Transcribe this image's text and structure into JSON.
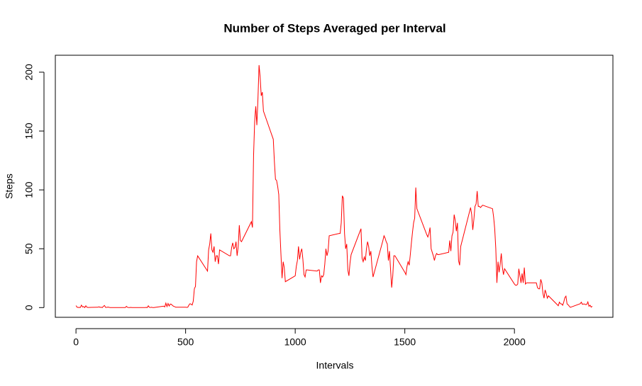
{
  "chart_data": {
    "type": "line",
    "title": "Number of Steps Averaged per Interval",
    "x_label": "Intervals",
    "y_label": "Steps",
    "color": "#ff0000",
    "x": [
      0,
      5,
      10,
      15,
      20,
      25,
      30,
      35,
      40,
      45,
      50,
      55,
      100,
      105,
      110,
      115,
      120,
      125,
      130,
      135,
      140,
      145,
      150,
      155,
      200,
      205,
      210,
      215,
      220,
      225,
      230,
      235,
      240,
      245,
      250,
      255,
      300,
      305,
      310,
      315,
      320,
      325,
      330,
      335,
      340,
      345,
      350,
      355,
      400,
      405,
      410,
      415,
      420,
      425,
      430,
      435,
      440,
      445,
      450,
      455,
      500,
      505,
      510,
      515,
      520,
      525,
      530,
      535,
      540,
      545,
      550,
      555,
      600,
      605,
      610,
      615,
      620,
      625,
      630,
      635,
      640,
      645,
      650,
      655,
      700,
      705,
      710,
      715,
      720,
      725,
      730,
      735,
      740,
      745,
      750,
      755,
      800,
      805,
      810,
      815,
      820,
      825,
      830,
      835,
      840,
      845,
      850,
      855,
      900,
      905,
      910,
      915,
      920,
      925,
      930,
      935,
      940,
      945,
      950,
      955,
      1000,
      1005,
      1010,
      1015,
      1020,
      1025,
      1030,
      1035,
      1040,
      1045,
      1050,
      1055,
      1100,
      1105,
      1110,
      1115,
      1120,
      1125,
      1130,
      1135,
      1140,
      1145,
      1150,
      1155,
      1200,
      1205,
      1210,
      1215,
      1220,
      1225,
      1230,
      1235,
      1240,
      1245,
      1250,
      1255,
      1300,
      1305,
      1310,
      1315,
      1320,
      1325,
      1330,
      1335,
      1340,
      1345,
      1350,
      1355,
      1400,
      1405,
      1410,
      1415,
      1420,
      1425,
      1430,
      1435,
      1440,
      1445,
      1450,
      1455,
      1500,
      1505,
      1510,
      1515,
      1520,
      1525,
      1530,
      1535,
      1540,
      1545,
      1550,
      1555,
      1600,
      1605,
      1610,
      1615,
      1620,
      1625,
      1630,
      1635,
      1640,
      1645,
      1650,
      1655,
      1700,
      1705,
      1710,
      1715,
      1720,
      1725,
      1730,
      1735,
      1740,
      1745,
      1750,
      1755,
      1800,
      1805,
      1810,
      1815,
      1820,
      1825,
      1830,
      1835,
      1840,
      1845,
      1850,
      1855,
      1900,
      1905,
      1910,
      1915,
      1920,
      1925,
      1930,
      1935,
      1940,
      1945,
      1950,
      1955,
      2000,
      2005,
      2010,
      2015,
      2020,
      2025,
      2030,
      2035,
      2040,
      2045,
      2050,
      2055,
      2100,
      2105,
      2110,
      2115,
      2120,
      2125,
      2130,
      2135,
      2140,
      2145,
      2150,
      2155,
      2200,
      2205,
      2210,
      2215,
      2220,
      2225,
      2230,
      2235,
      2240,
      2245,
      2250,
      2255,
      2300,
      2305,
      2310,
      2315,
      2320,
      2325,
      2330,
      2335,
      2340,
      2345,
      2350,
      2355
    ],
    "values": [
      1.7,
      0.3,
      0.1,
      0.2,
      0.1,
      2.1,
      0.5,
      0.9,
      0,
      1.5,
      0.3,
      0.1,
      0.3,
      0.7,
      0.2,
      0.3,
      0,
      1.1,
      1.8,
      0.2,
      0.2,
      0.4,
      0.3,
      0,
      0,
      0,
      0,
      0,
      0,
      0,
      1.1,
      0.2,
      0,
      0,
      0.2,
      0,
      0,
      0,
      0,
      0,
      0.2,
      0,
      1.5,
      0.2,
      0.1,
      0.3,
      0,
      0,
      1.2,
      0.6,
      3.8,
      0.9,
      3.5,
      1.3,
      3,
      2.8,
      1.8,
      1.1,
      0.8,
      0.3,
      0.3,
      0.2,
      0.3,
      2.1,
      3.3,
      2.9,
      2.2,
      5.5,
      16,
      18,
      39,
      44,
      31,
      49,
      54,
      63,
      49,
      47,
      52,
      39,
      44,
      44,
      37,
      49,
      44,
      44,
      51,
      55,
      50,
      51,
      56,
      44,
      52,
      70,
      57,
      56,
      73,
      68,
      129,
      158,
      171,
      155,
      177,
      206,
      196,
      180,
      183,
      167,
      143,
      124,
      109,
      108,
      103,
      96,
      66,
      45,
      25,
      39,
      34,
      22,
      27,
      35,
      40,
      52,
      41,
      47,
      50,
      41,
      28,
      26,
      32,
      32,
      31,
      32,
      32,
      21,
      27,
      26,
      28,
      37,
      50,
      44,
      48,
      61,
      63,
      63,
      72,
      95,
      93,
      63,
      50,
      54,
      32,
      27,
      38,
      45,
      67,
      42,
      39,
      43,
      40,
      50,
      56,
      52,
      44,
      48,
      35,
      26,
      57,
      61,
      59,
      56,
      54,
      40,
      48,
      32,
      17,
      27,
      44,
      44,
      30,
      28,
      35,
      39,
      36,
      45,
      55,
      64,
      72,
      76,
      102,
      84,
      62,
      60,
      63,
      68,
      50,
      47,
      44,
      40,
      44,
      46,
      45,
      45,
      47,
      57,
      48,
      61,
      64,
      79,
      74,
      65,
      72,
      40,
      36,
      52,
      85,
      79,
      66,
      75,
      86,
      88,
      99,
      86,
      86,
      85,
      86,
      87,
      84,
      77,
      67,
      50,
      21,
      39,
      30,
      37,
      46,
      34,
      28,
      33,
      20,
      19,
      19,
      20,
      33,
      27,
      21,
      29,
      21,
      34,
      20,
      21,
      21,
      17,
      16,
      16,
      24,
      21,
      12,
      8,
      15,
      12,
      8,
      10,
      1.6,
      4.6,
      3.3,
      3.1,
      2,
      4.7,
      8.5,
      9.7,
      3.1,
      2.4,
      1.2,
      0.2,
      3.3,
      4.6,
      2.8,
      3,
      3,
      2.5,
      2.7,
      4.8,
      1.1,
      2,
      0.4,
      1.1
    ],
    "xlim": [
      -94.2,
      2449.2
    ],
    "ylim": [
      -8.25,
      214.4
    ],
    "xticks": [
      0,
      500,
      1000,
      1500,
      2000
    ],
    "yticks": [
      0,
      50,
      100,
      150,
      200
    ]
  }
}
